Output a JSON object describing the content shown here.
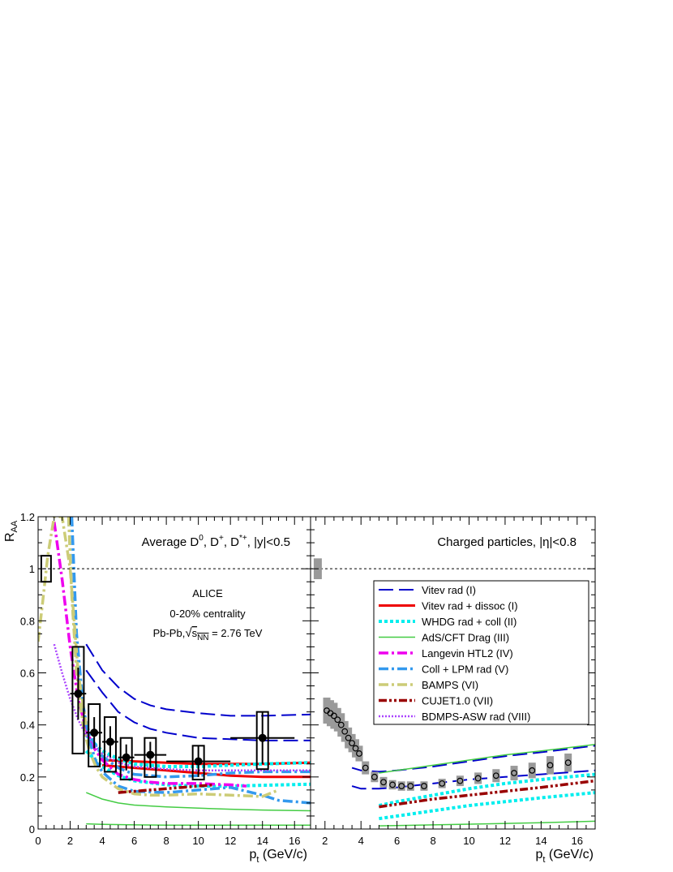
{
  "chart_data": [
    {
      "type": "line",
      "panel": "left",
      "title": "Average D⁰, D⁺, D*⁺, |y|<0.5",
      "title_parts": {
        "base": "Average D",
        "s1": "0",
        "sep1": ", D",
        "s2": "+",
        "sep2": ", D",
        "s3": "*+",
        "tail": ", |y|<0.5"
      },
      "annotations": [
        "ALICE",
        "0-20% centrality"
      ],
      "energy_label": {
        "prefix": "Pb-Pb,",
        "s": "s",
        "sub": "NN",
        "tail": " = 2.76 TeV"
      },
      "xlabel": {
        "main": "p",
        "sub": "t",
        "tail": " (GeV/c)"
      },
      "ylabel": {
        "main": "R",
        "sub": "AA"
      },
      "xlim": [
        0,
        17
      ],
      "ylim": [
        0,
        1.2
      ],
      "x_ticks": [
        0,
        2,
        4,
        6,
        8,
        10,
        12,
        14,
        16
      ],
      "y_ticks": [
        0,
        0.2,
        0.4,
        0.6,
        0.8,
        1,
        1.2
      ],
      "y_tick_labels": [
        "0",
        "0.2",
        "0.4",
        "0.6",
        "0.8",
        "1",
        "1.2"
      ],
      "reference_line": 1,
      "data_points": {
        "x": [
          2.5,
          3.5,
          4.5,
          5.5,
          7,
          10,
          14
        ],
        "y": [
          0.52,
          0.37,
          0.335,
          0.275,
          0.285,
          0.26,
          0.35
        ],
        "x_err": [
          0.5,
          0.5,
          0.5,
          0.5,
          1,
          2,
          2
        ],
        "y_err": [
          0.1,
          0.06,
          0.06,
          0.05,
          0.05,
          0.06,
          0.1
        ],
        "syst_low": [
          0.29,
          0.24,
          0.22,
          0.19,
          0.2,
          0.19,
          0.23
        ],
        "syst_high": [
          0.7,
          0.48,
          0.43,
          0.35,
          0.35,
          0.32,
          0.45
        ],
        "norm_box": {
          "x": 0.5,
          "low": 0.95,
          "high": 1.05
        }
      },
      "series": [
        {
          "name": "Vitev rad (I) upper",
          "color": "#0000cc",
          "style": "dashed-long",
          "x": [
            3,
            4,
            5,
            6,
            7,
            8,
            10,
            12,
            14,
            17
          ],
          "y": [
            0.71,
            0.61,
            0.545,
            0.5,
            0.475,
            0.46,
            0.445,
            0.435,
            0.435,
            0.44
          ]
        },
        {
          "name": "Vitev rad (I) lower",
          "color": "#0000cc",
          "style": "dashed-long",
          "x": [
            3,
            4,
            5,
            6,
            7,
            8,
            10,
            12,
            14,
            17
          ],
          "y": [
            0.61,
            0.525,
            0.45,
            0.41,
            0.385,
            0.37,
            0.35,
            0.345,
            0.34,
            0.34
          ]
        },
        {
          "name": "Vitev rad + dissoc (I) upper",
          "color": "#ee0000",
          "style": "solid-thick",
          "x": [
            4,
            6,
            8,
            10,
            12,
            14,
            17
          ],
          "y": [
            0.265,
            0.26,
            0.255,
            0.25,
            0.25,
            0.25,
            0.255
          ]
        },
        {
          "name": "Vitev rad + dissoc (I) lower",
          "color": "#ee0000",
          "style": "solid-thick",
          "x": [
            4,
            6,
            8,
            10,
            12,
            14,
            17
          ],
          "y": [
            0.245,
            0.235,
            0.225,
            0.215,
            0.205,
            0.2,
            0.2
          ]
        },
        {
          "name": "WHDG upper",
          "color": "#00eeee",
          "style": "dotted-thick",
          "x": [
            3,
            4,
            5,
            6,
            8,
            10,
            12,
            14,
            17
          ],
          "y": [
            0.36,
            0.3,
            0.27,
            0.25,
            0.24,
            0.24,
            0.245,
            0.25,
            0.255
          ]
        },
        {
          "name": "WHDG lower",
          "color": "#00eeee",
          "style": "dotted-thick",
          "x": [
            3,
            4,
            5,
            6,
            8,
            10,
            12,
            14,
            17
          ],
          "y": [
            0.3,
            0.24,
            0.205,
            0.185,
            0.17,
            0.165,
            0.165,
            0.168,
            0.172
          ]
        },
        {
          "name": "AdS/CFT upper",
          "color": "#44cc44",
          "style": "solid",
          "x": [
            3,
            4,
            5,
            6,
            8,
            10,
            12,
            14,
            17
          ],
          "y": [
            0.14,
            0.115,
            0.1,
            0.092,
            0.085,
            0.08,
            0.076,
            0.073,
            0.07
          ]
        },
        {
          "name": "AdS/CFT lower",
          "color": "#44cc44",
          "style": "solid",
          "x": [
            3,
            4,
            6,
            8,
            10,
            12,
            14,
            17
          ],
          "y": [
            0.02,
            0.018,
            0.016,
            0.015,
            0.015,
            0.015,
            0.015,
            0.015
          ]
        },
        {
          "name": "Langevin HTL2 (IV)",
          "color": "#ee00ee",
          "style": "dashdot-thick",
          "x": [
            1,
            1.5,
            2,
            2.5,
            3,
            3.5,
            4,
            5,
            6,
            7,
            8,
            9,
            10,
            11,
            12,
            13
          ],
          "y": [
            1.18,
            0.96,
            0.7,
            0.5,
            0.38,
            0.31,
            0.265,
            0.21,
            0.19,
            0.18,
            0.175,
            0.175,
            0.175,
            0.172,
            0.17,
            0.165
          ]
        },
        {
          "name": "Coll + LPM upper",
          "color": "#3399ee",
          "style": "dashdot-thick",
          "x": [
            1.9,
            2.2,
            2.5,
            3,
            3.5,
            4,
            5,
            6,
            8,
            10,
            12,
            14,
            17
          ],
          "y": [
            1.2,
            0.8,
            0.58,
            0.4,
            0.33,
            0.28,
            0.235,
            0.21,
            0.2,
            0.205,
            0.215,
            0.22,
            0.22
          ]
        },
        {
          "name": "Coll + LPM lower",
          "color": "#3399ee",
          "style": "dashdot-thick",
          "x": [
            2.1,
            2.4,
            2.8,
            3.2,
            3.6,
            4,
            5,
            6,
            8,
            10,
            12,
            14,
            15,
            17
          ],
          "y": [
            1.2,
            0.75,
            0.48,
            0.34,
            0.26,
            0.22,
            0.165,
            0.145,
            0.14,
            0.15,
            0.16,
            0.13,
            0.11,
            0.1
          ]
        },
        {
          "name": "BAMPS (VI) main",
          "color": "#cccc77",
          "style": "dashdot-thick",
          "x": [
            1.9,
            2.1,
            2.4,
            2.8,
            3.2,
            3.6,
            4,
            5,
            6,
            7,
            8,
            10,
            12,
            14,
            15
          ],
          "y": [
            1.2,
            0.9,
            0.6,
            0.4,
            0.3,
            0.24,
            0.2,
            0.155,
            0.135,
            0.13,
            0.13,
            0.135,
            0.13,
            0.125,
            0.15
          ]
        },
        {
          "name": "BAMPS (VI) low",
          "color": "#cccc77",
          "style": "dashdot-thick",
          "x": [
            0,
            0.3,
            0.6,
            1,
            1.5,
            2,
            2.5,
            3
          ],
          "y": [
            0.72,
            0.88,
            1.05,
            1.2,
            1.2,
            1.0,
            0.6,
            0.4
          ]
        },
        {
          "name": "CUJET1.0 (VII)",
          "color": "#990000",
          "style": "dashdot3",
          "x": [
            5,
            6,
            7,
            8,
            9,
            10,
            11
          ],
          "y": [
            0.14,
            0.145,
            0.15,
            0.155,
            0.16,
            0.165,
            0.17
          ]
        },
        {
          "name": "BDMPS-ASW rad (VIII)",
          "color": "#aa44ff",
          "style": "dotted",
          "x": [
            1,
            1.5,
            2,
            2.5,
            3,
            3.5,
            4,
            5,
            6,
            8,
            10,
            12,
            14,
            17
          ],
          "y": [
            0.71,
            0.6,
            0.5,
            0.42,
            0.36,
            0.32,
            0.29,
            0.255,
            0.24,
            0.23,
            0.225,
            0.225,
            0.225,
            0.225
          ]
        }
      ]
    },
    {
      "type": "line",
      "panel": "right",
      "title": "Charged particles, |η|<0.8",
      "xlabel": {
        "main": "p",
        "sub": "t",
        "tail": " (GeV/c)"
      },
      "xlim": [
        1.2,
        17
      ],
      "ylim": [
        0,
        1.2
      ],
      "x_ticks": [
        2,
        4,
        6,
        8,
        10,
        12,
        14,
        16
      ],
      "reference_line": 1,
      "data_points": {
        "x": [
          2.1,
          2.3,
          2.5,
          2.7,
          2.9,
          3.1,
          3.3,
          3.5,
          3.7,
          3.9,
          4.25,
          4.75,
          5.25,
          5.75,
          6.25,
          6.75,
          7.5,
          8.5,
          9.5,
          10.5,
          11.5,
          12.5,
          13.5,
          14.5,
          15.5
        ],
        "y": [
          0.455,
          0.445,
          0.435,
          0.42,
          0.4,
          0.375,
          0.35,
          0.33,
          0.31,
          0.29,
          0.235,
          0.2,
          0.18,
          0.17,
          0.165,
          0.165,
          0.165,
          0.175,
          0.185,
          0.195,
          0.205,
          0.215,
          0.225,
          0.245,
          0.255
        ],
        "syst": [
          0.05,
          0.05,
          0.05,
          0.045,
          0.045,
          0.04,
          0.04,
          0.035,
          0.035,
          0.03,
          0.025,
          0.02,
          0.02,
          0.018,
          0.018,
          0.018,
          0.018,
          0.018,
          0.02,
          0.022,
          0.025,
          0.028,
          0.03,
          0.035,
          0.035
        ],
        "norm_box": {
          "x": 1.6,
          "low": 0.96,
          "high": 1.04
        }
      },
      "series": [
        {
          "name": "Vitev rad (I) upper",
          "color": "#0000cc",
          "style": "dashed-long",
          "x": [
            3.5,
            4,
            5,
            6,
            8,
            10,
            12,
            14,
            17
          ],
          "y": [
            0.235,
            0.225,
            0.22,
            0.225,
            0.24,
            0.26,
            0.28,
            0.295,
            0.32
          ]
        },
        {
          "name": "Vitev rad (I) lower",
          "color": "#0000cc",
          "style": "dashed-long",
          "x": [
            3.5,
            4,
            5,
            6,
            8,
            10,
            12,
            14,
            17
          ],
          "y": [
            0.165,
            0.155,
            0.155,
            0.16,
            0.175,
            0.19,
            0.2,
            0.21,
            0.225
          ]
        },
        {
          "name": "AdS/CFT upper",
          "color": "#44cc44",
          "style": "solid",
          "x": [
            5,
            6,
            8,
            10,
            12,
            14,
            17
          ],
          "y": [
            0.215,
            0.225,
            0.245,
            0.265,
            0.285,
            0.3,
            0.325
          ]
        },
        {
          "name": "AdS/CFT lower",
          "color": "#44cc44",
          "style": "solid",
          "x": [
            5,
            8,
            11,
            14,
            17
          ],
          "y": [
            0.012,
            0.016,
            0.02,
            0.024,
            0.03
          ]
        },
        {
          "name": "WHDG upper",
          "color": "#00eeee",
          "style": "dotted-thick",
          "x": [
            5,
            6,
            8,
            10,
            12,
            14,
            17
          ],
          "y": [
            0.09,
            0.105,
            0.13,
            0.155,
            0.175,
            0.19,
            0.21
          ]
        },
        {
          "name": "WHDG lower",
          "color": "#00eeee",
          "style": "dotted-thick",
          "x": [
            5,
            6,
            8,
            10,
            12,
            14,
            17
          ],
          "y": [
            0.04,
            0.05,
            0.07,
            0.09,
            0.105,
            0.12,
            0.14
          ]
        },
        {
          "name": "CUJET1.0 (VII)",
          "color": "#990000",
          "style": "dashdot3",
          "x": [
            5,
            6,
            8,
            10,
            12,
            14,
            17
          ],
          "y": [
            0.085,
            0.095,
            0.115,
            0.13,
            0.145,
            0.16,
            0.185
          ]
        }
      ],
      "legend": {
        "placement": "right-middle",
        "entries": [
          {
            "label": "Vitev rad (I)",
            "color": "#0000cc",
            "style": "dashed-long"
          },
          {
            "label": "Vitev rad + dissoc (I)",
            "color": "#ee0000",
            "style": "solid-thick"
          },
          {
            "label": "WHDG rad + coll (II)",
            "color": "#00eeee",
            "style": "dotted-thick"
          },
          {
            "label": "AdS/CFT Drag (III)",
            "color": "#44cc44",
            "style": "solid"
          },
          {
            "label": "Langevin HTL2 (IV)",
            "color": "#ee00ee",
            "style": "dashdot-thick"
          },
          {
            "label": "Coll + LPM rad (V)",
            "color": "#3399ee",
            "style": "dashdot-thick"
          },
          {
            "label": "BAMPS (VI)",
            "color": "#cccc77",
            "style": "dashdot-thick"
          },
          {
            "label": "CUJET1.0 (VII)",
            "color": "#990000",
            "style": "dashdot3"
          },
          {
            "label": "BDMPS-ASW rad (VIII)",
            "color": "#aa44ff",
            "style": "dotted"
          }
        ]
      }
    }
  ]
}
